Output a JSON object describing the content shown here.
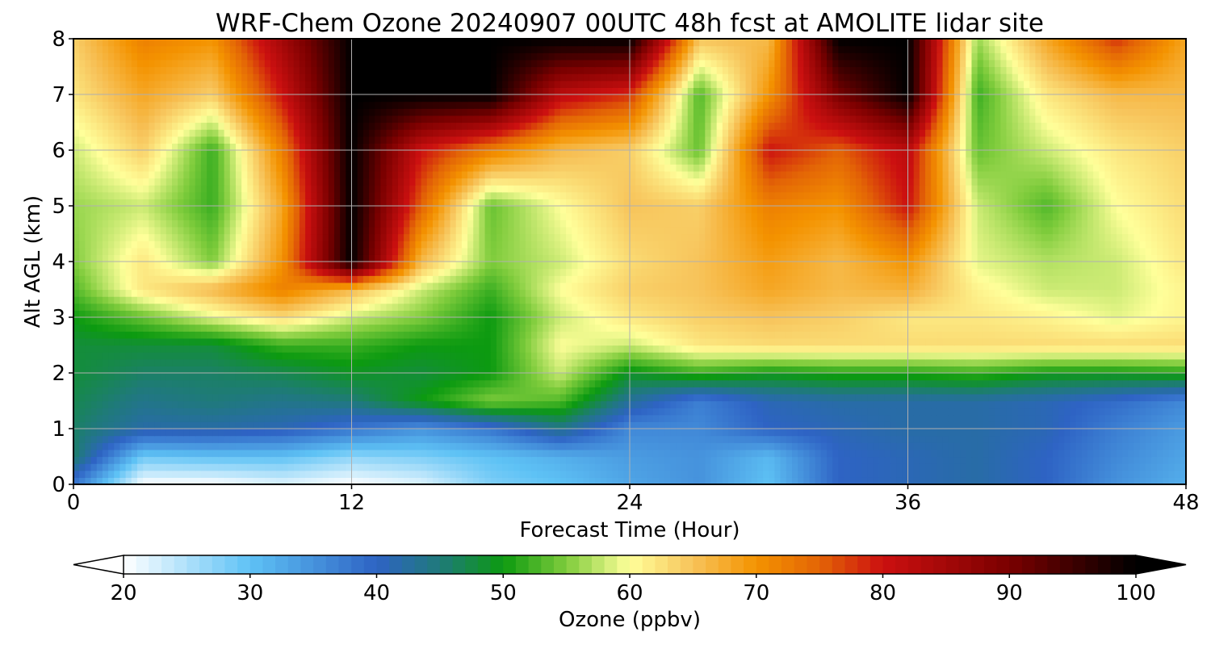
{
  "chart_data": {
    "type": "heatmap",
    "title": "WRF-Chem Ozone  20240907 00UTC 48h fcst at AMOLITE lidar site",
    "xlabel": "Forecast Time (Hour)",
    "ylabel": "Alt AGL (km)",
    "xlim": [
      0,
      48
    ],
    "ylim": [
      0,
      8
    ],
    "xticks": [
      "0",
      "12",
      "24",
      "36",
      "48"
    ],
    "yticks": [
      "0",
      "1",
      "2",
      "3",
      "4",
      "5",
      "6",
      "7",
      "8"
    ],
    "grid": true,
    "x": [
      0,
      3,
      6,
      9,
      12,
      15,
      18,
      21,
      24,
      27,
      30,
      33,
      36,
      39,
      42,
      45,
      48
    ],
    "y": [
      0,
      0.5,
      1,
      1.5,
      2,
      2.5,
      3,
      3.5,
      4,
      5,
      6,
      7,
      8
    ],
    "z": [
      [
        38,
        20,
        20,
        22,
        20,
        22,
        28,
        30,
        33,
        35,
        30,
        40,
        41,
        42,
        40,
        35,
        32
      ],
      [
        46,
        29,
        30,
        30,
        27,
        28,
        30,
        32,
        34,
        35,
        31,
        40,
        41,
        42,
        40,
        36,
        33
      ],
      [
        46,
        42,
        42,
        41,
        38,
        35,
        38,
        44,
        36,
        36,
        40,
        41,
        42,
        42,
        41,
        37,
        34
      ],
      [
        47,
        44,
        45,
        44,
        45,
        50,
        55,
        53,
        43,
        37,
        41,
        42,
        42,
        42,
        41,
        39,
        36
      ],
      [
        48,
        46,
        46,
        47,
        49,
        48,
        50,
        58,
        49,
        52,
        50,
        51,
        51,
        52,
        50,
        50,
        51
      ],
      [
        48,
        48,
        48,
        52,
        52,
        50,
        50,
        60,
        58,
        62,
        63,
        63,
        63,
        63,
        63,
        63,
        63
      ],
      [
        50,
        54,
        59,
        63,
        58,
        55,
        50,
        58,
        62,
        64,
        65,
        64,
        62,
        62,
        61,
        59,
        61
      ],
      [
        53,
        62,
        66,
        72,
        66,
        58,
        52,
        60,
        64,
        65,
        68,
        66,
        67,
        61,
        58,
        58,
        61
      ],
      [
        55,
        62,
        55,
        70,
        100,
        66,
        55,
        58,
        63,
        65,
        69,
        66,
        70,
        59,
        57,
        58,
        62
      ],
      [
        56,
        58,
        52,
        68,
        100,
        75,
        54,
        60,
        65,
        64,
        72,
        70,
        80,
        58,
        53,
        60,
        63
      ],
      [
        58,
        64,
        52,
        72,
        100,
        80,
        72,
        66,
        64,
        54,
        80,
        75,
        82,
        54,
        58,
        62,
        64
      ],
      [
        62,
        68,
        64,
        80,
        100,
        100,
        100,
        82,
        78,
        53,
        70,
        90,
        100,
        52,
        62,
        66,
        66
      ],
      [
        64,
        72,
        70,
        85,
        100,
        100,
        100,
        100,
        100,
        65,
        66,
        100,
        100,
        56,
        68,
        78,
        68
      ]
    ],
    "colorbar": {
      "label": "Ozone  (ppbv)",
      "min": 20,
      "max": 100,
      "ticks": [
        "20",
        "30",
        "40",
        "50",
        "60",
        "70",
        "80",
        "90",
        "100"
      ],
      "extend": "both",
      "stops": [
        [
          20,
          "#ffffff"
        ],
        [
          30,
          "#5ec2f5"
        ],
        [
          40,
          "#2e63c4"
        ],
        [
          45,
          "#1f7a7a"
        ],
        [
          50,
          "#0c9a10"
        ],
        [
          55,
          "#7fcc3c"
        ],
        [
          60,
          "#ffff9a"
        ],
        [
          65,
          "#f7c35a"
        ],
        [
          70,
          "#f49300"
        ],
        [
          75,
          "#e36406"
        ],
        [
          80,
          "#cc1010"
        ],
        [
          90,
          "#7a0000"
        ],
        [
          100,
          "#000000"
        ]
      ]
    }
  }
}
